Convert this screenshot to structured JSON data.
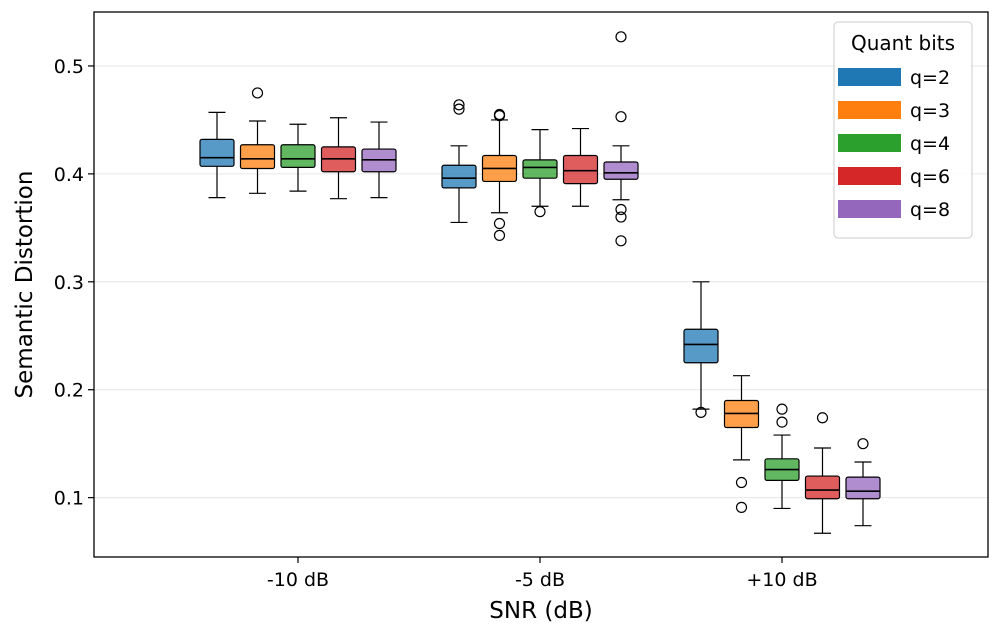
{
  "chart_data": {
    "type": "boxplot",
    "xlabel": "SNR (dB)",
    "ylabel": "Semantic Distortion",
    "ylim": [
      0.045,
      0.55
    ],
    "yticks": [
      0.1,
      0.2,
      0.3,
      0.4,
      0.5
    ],
    "ytick_labels": [
      "0.1",
      "0.2",
      "0.3",
      "0.4",
      "0.5"
    ],
    "categories": [
      "-10 dB",
      "-5 dB",
      "+10 dB"
    ],
    "grid": "horizontal",
    "legend": {
      "title": "Quant bits",
      "position": "top-right",
      "entries": [
        "q=2",
        "q=3",
        "q=4",
        "q=6",
        "q=8"
      ]
    },
    "series": [
      {
        "name": "q=2",
        "color": "#1f77b4",
        "boxes": [
          {
            "whislo": 0.378,
            "q1": 0.407,
            "med": 0.415,
            "q3": 0.432,
            "whishi": 0.457,
            "fliers": []
          },
          {
            "whislo": 0.355,
            "q1": 0.387,
            "med": 0.396,
            "q3": 0.408,
            "whishi": 0.426,
            "fliers": [
              0.46,
              0.464
            ]
          },
          {
            "whislo": 0.182,
            "q1": 0.225,
            "med": 0.242,
            "q3": 0.256,
            "whishi": 0.3,
            "fliers": [
              0.179
            ]
          }
        ]
      },
      {
        "name": "q=3",
        "color": "#ff7f0e",
        "boxes": [
          {
            "whislo": 0.382,
            "q1": 0.405,
            "med": 0.414,
            "q3": 0.427,
            "whishi": 0.449,
            "fliers": [
              0.475
            ]
          },
          {
            "whislo": 0.364,
            "q1": 0.393,
            "med": 0.405,
            "q3": 0.417,
            "whishi": 0.45,
            "fliers": [
              0.343,
              0.354,
              0.454,
              0.455
            ]
          },
          {
            "whislo": 0.135,
            "q1": 0.165,
            "med": 0.178,
            "q3": 0.19,
            "whishi": 0.213,
            "fliers": [
              0.091,
              0.114
            ]
          }
        ]
      },
      {
        "name": "q=4",
        "color": "#2ca02c",
        "boxes": [
          {
            "whislo": 0.384,
            "q1": 0.406,
            "med": 0.414,
            "q3": 0.427,
            "whishi": 0.446,
            "fliers": []
          },
          {
            "whislo": 0.37,
            "q1": 0.396,
            "med": 0.406,
            "q3": 0.413,
            "whishi": 0.441,
            "fliers": [
              0.365
            ]
          },
          {
            "whislo": 0.09,
            "q1": 0.116,
            "med": 0.126,
            "q3": 0.136,
            "whishi": 0.158,
            "fliers": [
              0.17,
              0.182
            ]
          }
        ]
      },
      {
        "name": "q=6",
        "color": "#d62728",
        "boxes": [
          {
            "whislo": 0.377,
            "q1": 0.402,
            "med": 0.414,
            "q3": 0.425,
            "whishi": 0.452,
            "fliers": []
          },
          {
            "whislo": 0.37,
            "q1": 0.391,
            "med": 0.403,
            "q3": 0.417,
            "whishi": 0.442,
            "fliers": []
          },
          {
            "whislo": 0.067,
            "q1": 0.099,
            "med": 0.107,
            "q3": 0.12,
            "whishi": 0.146,
            "fliers": [
              0.174
            ]
          }
        ]
      },
      {
        "name": "q=8",
        "color": "#9467bd",
        "boxes": [
          {
            "whislo": 0.378,
            "q1": 0.402,
            "med": 0.413,
            "q3": 0.423,
            "whishi": 0.448,
            "fliers": []
          },
          {
            "whislo": 0.376,
            "q1": 0.395,
            "med": 0.401,
            "q3": 0.411,
            "whishi": 0.426,
            "fliers": [
              0.338,
              0.36,
              0.367,
              0.453,
              0.527
            ]
          },
          {
            "whislo": 0.074,
            "q1": 0.099,
            "med": 0.106,
            "q3": 0.119,
            "whishi": 0.133,
            "fliers": [
              0.15
            ]
          }
        ]
      }
    ]
  }
}
